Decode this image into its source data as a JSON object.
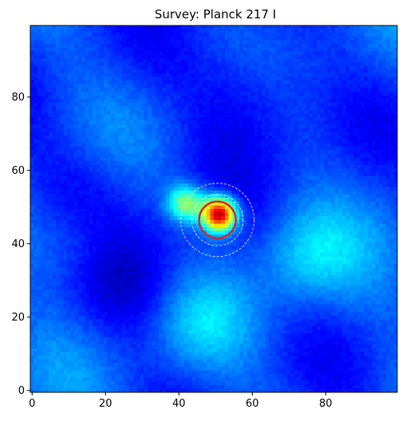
{
  "chart_data": {
    "type": "heatmap",
    "title": "Survey: Planck 217 I",
    "xlabel": "",
    "ylabel": "",
    "xlim": [
      -0.5,
      99.5
    ],
    "ylim": [
      -0.5,
      99.5
    ],
    "x_ticks": [
      0,
      20,
      40,
      60,
      80
    ],
    "y_ticks": [
      0,
      20,
      40,
      60,
      80
    ],
    "x_tick_labels": [
      "0",
      "20",
      "40",
      "60",
      "80"
    ],
    "y_tick_labels": [
      "0",
      "20",
      "40",
      "60",
      "80"
    ],
    "grid": false,
    "colormap": "jet",
    "grid_size": [
      100,
      100
    ],
    "background_level": 0.2,
    "source": {
      "x": 51,
      "y": 48,
      "peak_level": 1.0
    },
    "source_extension": {
      "x": 42,
      "y": 51,
      "level": 0.55
    },
    "dark_regions": [
      {
        "x": 60,
        "y": 80,
        "level": 0.08
      },
      {
        "x": 30,
        "y": 30,
        "level": 0.1
      },
      {
        "x": 15,
        "y": 55,
        "level": 0.12
      }
    ],
    "bright_regions": [
      {
        "x": 75,
        "y": 37,
        "level": 0.32
      },
      {
        "x": 45,
        "y": 18,
        "level": 0.3
      },
      {
        "x": 12,
        "y": 40,
        "level": 0.3
      }
    ],
    "circles": [
      {
        "name": "aperture",
        "cx": 50.5,
        "cy": 46.5,
        "r": 5,
        "color": "#d62728",
        "style": "solid"
      },
      {
        "name": "annulus-inner",
        "cx": 50.5,
        "cy": 46.5,
        "r": 7,
        "color": "#ffffff",
        "style": "dashed"
      },
      {
        "name": "annulus-outer",
        "cx": 50.5,
        "cy": 46.5,
        "r": 10,
        "color": "#ffffff",
        "style": "dashed"
      }
    ]
  }
}
